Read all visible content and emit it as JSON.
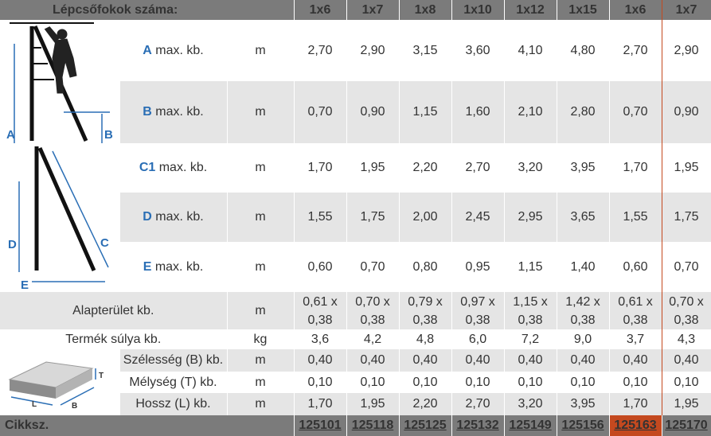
{
  "header": {
    "title": "Lépcsőfokok száma:",
    "columns": [
      "1x6",
      "1x7",
      "1x8",
      "1x10",
      "1x12",
      "1x15",
      "1x6",
      "1x7"
    ]
  },
  "rows_dims": [
    {
      "letter": "A",
      "label": "max. kb.",
      "unit": "m",
      "values": [
        "2,70",
        "2,90",
        "3,15",
        "3,60",
        "4,10",
        "4,80",
        "2,70",
        "2,90"
      ]
    },
    {
      "letter": "B",
      "label": "max. kb.",
      "unit": "m",
      "values": [
        "0,70",
        "0,90",
        "1,15",
        "1,60",
        "2,10",
        "2,80",
        "0,70",
        "0,90"
      ]
    },
    {
      "letter": "C1",
      "label": "max. kb.",
      "unit": "m",
      "values": [
        "1,70",
        "1,95",
        "2,20",
        "2,70",
        "3,20",
        "3,95",
        "1,70",
        "1,95"
      ]
    },
    {
      "letter": "D",
      "label": "max. kb.",
      "unit": "m",
      "values": [
        "1,55",
        "1,75",
        "2,00",
        "2,45",
        "2,95",
        "3,65",
        "1,55",
        "1,75"
      ]
    },
    {
      "letter": "E",
      "label": "max. kb.",
      "unit": "m",
      "values": [
        "0,60",
        "0,70",
        "0,80",
        "0,95",
        "1,15",
        "1,40",
        "0,60",
        "0,70"
      ]
    }
  ],
  "footprint": {
    "label": "Alapterület kb.",
    "unit": "m",
    "line1": [
      "0,61 x",
      "0,70 x",
      "0,79 x",
      "0,97 x",
      "1,15 x",
      "1,42 x",
      "0,61 x",
      "0,70 x"
    ],
    "line2": [
      "0,38",
      "0,38",
      "0,38",
      "0,38",
      "0,38",
      "0,38",
      "0,38",
      "0,38"
    ]
  },
  "weight": {
    "label": "Termék súlya kb.",
    "unit": "kg",
    "values": [
      "3,6",
      "4,2",
      "4,8",
      "6,0",
      "7,2",
      "9,0",
      "3,7",
      "4,3"
    ]
  },
  "package": [
    {
      "label": "Szélesség (B) kb.",
      "unit": "m",
      "values": [
        "0,40",
        "0,40",
        "0,40",
        "0,40",
        "0,40",
        "0,40",
        "0,40",
        "0,40"
      ]
    },
    {
      "label": "Mélység (T) kb.",
      "unit": "m",
      "values": [
        "0,10",
        "0,10",
        "0,10",
        "0,10",
        "0,10",
        "0,10",
        "0,10",
        "0,10"
      ]
    },
    {
      "label": "Hossz (L) kb.",
      "unit": "m",
      "values": [
        "1,70",
        "1,95",
        "2,20",
        "2,70",
        "3,20",
        "3,95",
        "1,70",
        "1,95"
      ]
    }
  ],
  "footer": {
    "label": "Cikksz.",
    "codes": [
      "125101",
      "125118",
      "125125",
      "125132",
      "125149",
      "125156",
      "125163",
      "125170"
    ]
  },
  "diagram_letters": {
    "a": "A",
    "b": "B",
    "c": "C",
    "d": "D",
    "e": "E",
    "l": "L",
    "t": "T",
    "pb": "B"
  },
  "colors": {
    "header_bg": "#7b7b7b",
    "highlight": "#c4491f",
    "letter_blue": "#2a6eb5",
    "stripe": "#e5e5e5"
  }
}
